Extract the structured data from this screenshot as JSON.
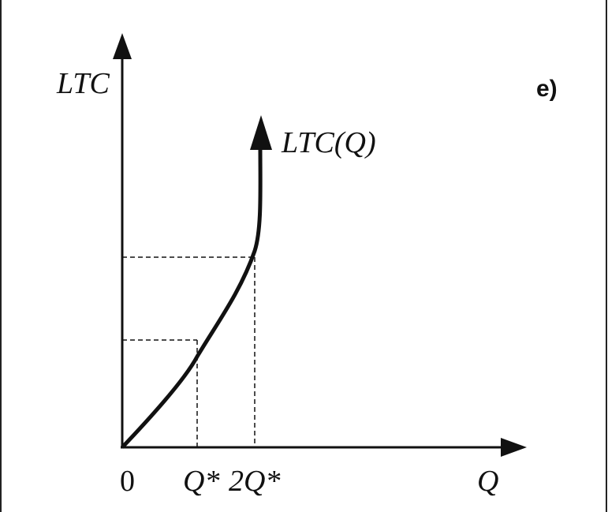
{
  "panel_label": "e)",
  "axes": {
    "y_label": "LTC",
    "x_label": "Q",
    "origin": "0"
  },
  "curve_label": "LTC(Q)",
  "x_markers": [
    "Q*",
    "2Q*"
  ]
}
